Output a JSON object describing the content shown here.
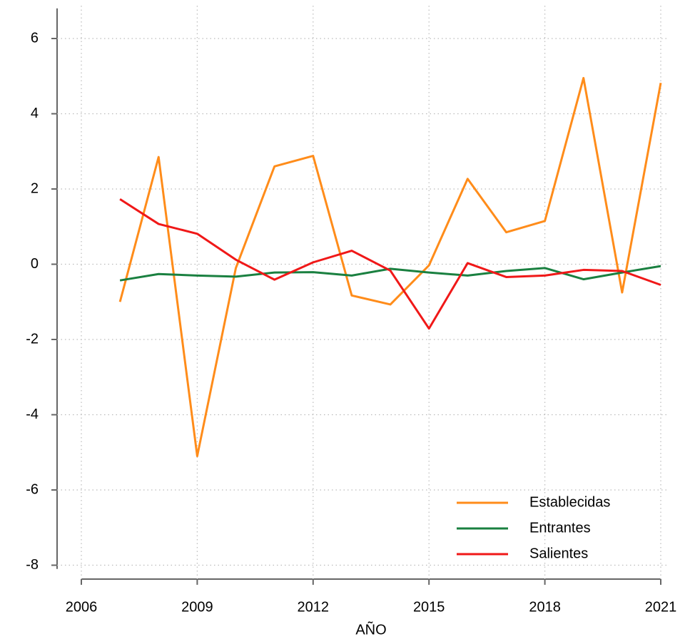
{
  "chart_data": {
    "type": "line",
    "x_label": "AÑO",
    "x": [
      2007,
      2008,
      2009,
      2010,
      2011,
      2012,
      2013,
      2014,
      2015,
      2016,
      2017,
      2018,
      2019,
      2020,
      2021
    ],
    "series": [
      {
        "name": "Establecidas",
        "color": "#ff8c1a",
        "values": [
          -1.0,
          2.85,
          -5.1,
          -0.1,
          2.6,
          2.88,
          -0.83,
          -1.07,
          -0.03,
          2.27,
          0.85,
          1.15,
          4.95,
          -0.75,
          4.82
        ]
      },
      {
        "name": "Entrantes",
        "color": "#1a8040",
        "values": [
          -0.43,
          -0.26,
          -0.3,
          -0.33,
          -0.22,
          -0.21,
          -0.3,
          -0.12,
          -0.22,
          -0.3,
          -0.18,
          -0.1,
          -0.4,
          -0.22,
          -0.05
        ]
      },
      {
        "name": "Salientes",
        "color": "#f01818",
        "values": [
          1.73,
          1.07,
          0.81,
          0.12,
          -0.41,
          0.05,
          0.36,
          -0.17,
          -1.71,
          0.03,
          -0.34,
          -0.3,
          -0.15,
          -0.18,
          -0.55
        ]
      }
    ],
    "xlim": [
      2006,
      2021
    ],
    "xticks": [
      2006,
      2009,
      2012,
      2015,
      2018,
      2021
    ],
    "ylim": [
      -8.1,
      6.8
    ],
    "yticks": [
      -8,
      -6,
      -4,
      -2,
      0,
      2,
      4,
      6
    ],
    "grid": true,
    "legend_position": "lower right"
  }
}
